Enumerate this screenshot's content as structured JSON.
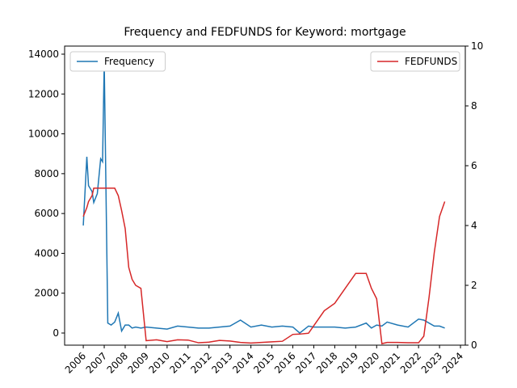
{
  "chart_data": {
    "type": "line",
    "title": "Frequency and FEDFUNDS for Keyword: mortgage",
    "x": [
      2006.0,
      2006.17,
      2006.25,
      2006.42,
      2006.5,
      2006.67,
      2006.83,
      2006.92,
      2007.0,
      2007.17,
      2007.33,
      2007.5,
      2007.67,
      2007.83,
      2008.0,
      2008.17,
      2008.33,
      2008.5,
      2008.75,
      2009.0,
      2009.5,
      2010.0,
      2010.5,
      2011.0,
      2011.5,
      2012.0,
      2012.5,
      2013.0,
      2013.5,
      2014.0,
      2014.5,
      2015.0,
      2015.5,
      2016.0,
      2016.33,
      2016.75,
      2017.0,
      2017.5,
      2018.0,
      2018.5,
      2019.0,
      2019.5,
      2019.75,
      2020.0,
      2020.25,
      2020.5,
      2021.0,
      2021.5,
      2022.0,
      2022.25,
      2022.5,
      2022.75,
      2023.0,
      2023.25
    ],
    "series": [
      {
        "name": "Frequency",
        "color": "#1f77b4",
        "axis": "y",
        "legend": "upper left",
        "values": [
          5400,
          8850,
          7400,
          7100,
          6550,
          7000,
          8750,
          8600,
          13600,
          500,
          400,
          550,
          1000,
          100,
          400,
          400,
          250,
          300,
          250,
          300,
          250,
          200,
          350,
          300,
          250,
          250,
          300,
          350,
          650,
          300,
          400,
          300,
          350,
          300,
          0,
          350,
          300,
          300,
          300,
          250,
          300,
          500,
          250,
          400,
          350,
          550,
          400,
          300,
          700,
          650,
          500,
          350,
          350,
          250
        ]
      },
      {
        "name": "FEDFUNDS",
        "color": "#d62728",
        "axis": "y2",
        "legend": "upper right",
        "values": [
          4.3,
          4.6,
          4.8,
          5.0,
          5.25,
          5.25,
          5.25,
          5.25,
          5.25,
          5.25,
          5.25,
          5.25,
          5.0,
          4.5,
          3.9,
          2.6,
          2.2,
          2.0,
          1.9,
          0.15,
          0.18,
          0.12,
          0.18,
          0.17,
          0.08,
          0.1,
          0.16,
          0.14,
          0.09,
          0.07,
          0.09,
          0.11,
          0.13,
          0.36,
          0.37,
          0.4,
          0.65,
          1.15,
          1.4,
          1.9,
          2.4,
          2.4,
          1.9,
          1.55,
          0.05,
          0.09,
          0.09,
          0.08,
          0.08,
          0.3,
          1.6,
          3.1,
          4.3,
          4.8
        ]
      }
    ],
    "xlim": [
      2005.11,
      2024.23
    ],
    "xticks": [
      2006,
      2007,
      2008,
      2009,
      2010,
      2011,
      2012,
      2013,
      2014,
      2015,
      2016,
      2017,
      2018,
      2019,
      2020,
      2021,
      2022,
      2023,
      2024
    ],
    "ylim": [
      -609,
      14406
    ],
    "yticks": [
      0,
      2000,
      4000,
      6000,
      8000,
      10000,
      12000,
      14000
    ],
    "y2lim": [
      0,
      10
    ],
    "y2ticks": [
      0,
      2,
      4,
      6,
      8,
      10
    ]
  }
}
